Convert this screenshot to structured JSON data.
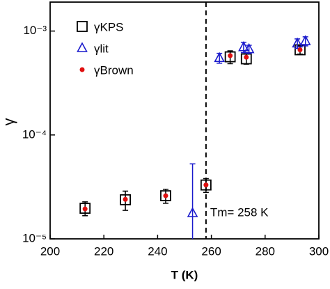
{
  "chart_data": {
    "type": "scatter",
    "xlabel": "T (K)",
    "ylabel": "γ",
    "xlim": [
      200,
      300
    ],
    "xticks": [
      200,
      220,
      240,
      260,
      280,
      300
    ],
    "ylim": [
      1e-05,
      0.0019
    ],
    "log_y": true,
    "yticks": [
      {
        "value": 1e-05,
        "label": "10⁻⁵"
      },
      {
        "value": 0.0001,
        "label": "10⁻⁴"
      },
      {
        "value": 0.001,
        "label": "10⁻³"
      }
    ],
    "legend": "upper left",
    "series": [
      {
        "name": "γKPS",
        "marker": "square",
        "color": "#000000",
        "x": [
          213,
          228,
          243,
          258,
          267,
          273,
          293
        ],
        "values": [
          1.97e-05,
          2.38e-05,
          2.6e-05,
          3.3e-05,
          0.000565,
          0.00054,
          0.00066
        ],
        "errors": [
          3e-06,
          5e-06,
          4e-06,
          5e-06,
          8e-05,
          6e-05,
          6e-05
        ]
      },
      {
        "name": "γlit",
        "marker": "triangle",
        "color": "#1a1acc",
        "x": [
          253,
          263,
          272,
          274,
          292,
          295
        ],
        "values": [
          1.77e-05,
          0.00055,
          0.0007,
          0.00067,
          0.00076,
          0.0008
        ],
        "errors": [
          3.5e-05,
          6e-05,
          8e-05,
          6e-05,
          8e-05,
          8e-05
        ]
      },
      {
        "name": "γBrown",
        "marker": "dot",
        "color": "#e01010",
        "x": [
          213,
          228,
          243,
          258,
          267,
          273,
          293
        ],
        "values": [
          1.94e-05,
          2.4e-05,
          2.6e-05,
          3.3e-05,
          0.00058,
          0.00056,
          0.00066
        ]
      }
    ],
    "annotation": {
      "x": 258,
      "label": "Tm= 258 K"
    }
  }
}
